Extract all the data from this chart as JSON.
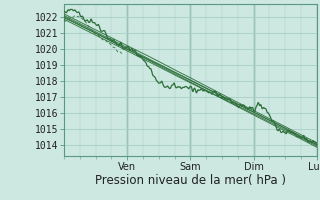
{
  "bg_color": "#cce8e0",
  "grid_color": "#a8cfc4",
  "line_color": "#2d6e3a",
  "ylabel_values": [
    1014,
    1015,
    1016,
    1017,
    1018,
    1019,
    1020,
    1021,
    1022
  ],
  "ylim": [
    1013.3,
    1022.8
  ],
  "xlim": [
    0,
    96
  ],
  "day_ticks": [
    24,
    48,
    72,
    96
  ],
  "day_labels": [
    "Ven",
    "Sam",
    "Dim",
    "Lun"
  ],
  "xlabel": "Pression niveau de la mer( hPa )",
  "label_fontsize": 8.5,
  "tick_fontsize": 7,
  "figsize": [
    3.2,
    2.0
  ],
  "dpi": 100
}
